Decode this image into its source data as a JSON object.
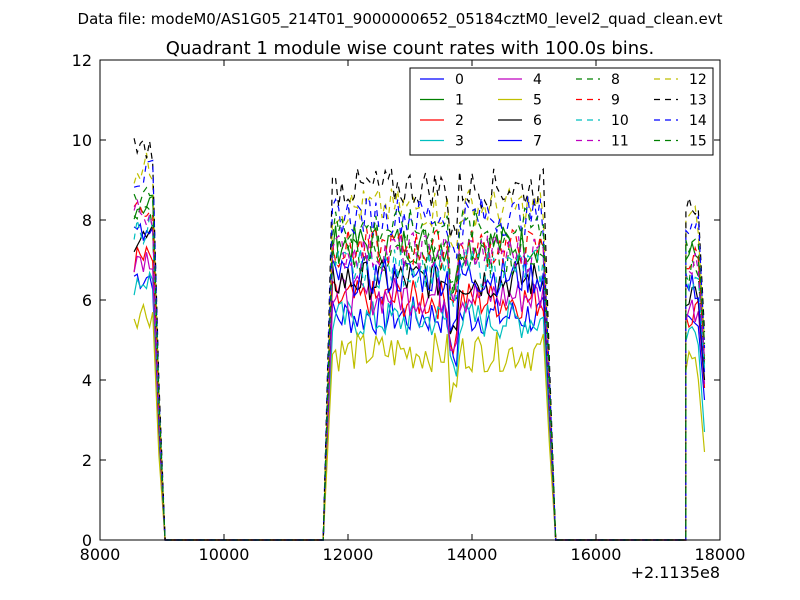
{
  "suptitle": "Data file: modeM0/AS1G05_214T01_9000000652_05184cztM0_level2_quad_clean.evt",
  "chart_data": {
    "type": "line",
    "title": "Quadrant 1 module wise count rates with 100.0s bins.",
    "xlabel": "",
    "ylabel": "",
    "xlim": [
      8000,
      18000
    ],
    "ylim": [
      0,
      12
    ],
    "x_offset_label": "+2.1135e8",
    "xticks": [
      8000,
      10000,
      12000,
      14000,
      16000,
      18000
    ],
    "yticks": [
      0,
      2,
      4,
      6,
      8,
      10,
      12
    ],
    "grid": false,
    "legend_position": "top-right",
    "legend_columns": 4,
    "segments": [
      {
        "x_start": 8550,
        "x_end": 8850
      },
      {
        "x_start": 11750,
        "x_end": 15150
      },
      {
        "x_start": 17450,
        "x_end": 17650
      }
    ],
    "x_zero_edges": [
      [
        9050,
        11600
      ],
      [
        15350,
        17450
      ]
    ],
    "x_end": 17750,
    "series": [
      {
        "name": "0",
        "color": "#0000ff",
        "dashed": false,
        "level": 5.6,
        "end": 3.5
      },
      {
        "name": "1",
        "color": "#008000",
        "dashed": false,
        "level": 7.4,
        "end": 4.5
      },
      {
        "name": "2",
        "color": "#ff0000",
        "dashed": false,
        "level": 6.0,
        "end": 3.8
      },
      {
        "name": "3",
        "color": "#00bfbf",
        "dashed": false,
        "level": 5.5,
        "end": 2.7
      },
      {
        "name": "4",
        "color": "#bf00bf",
        "dashed": false,
        "level": 6.1,
        "end": 3.9
      },
      {
        "name": "5",
        "color": "#bfbf00",
        "dashed": false,
        "level": 4.7,
        "end": 2.2
      },
      {
        "name": "6",
        "color": "#000000",
        "dashed": false,
        "level": 6.5,
        "end": 4.0
      },
      {
        "name": "7",
        "color": "#0000ff",
        "dashed": false,
        "level": 6.6,
        "end": 4.2
      },
      {
        "name": "8",
        "color": "#008000",
        "dashed": true,
        "level": 7.1,
        "end": 4.4
      },
      {
        "name": "9",
        "color": "#ff0000",
        "dashed": true,
        "level": 7.3,
        "end": 4.6
      },
      {
        "name": "10",
        "color": "#00bfbf",
        "dashed": true,
        "level": 6.8,
        "end": 4.3
      },
      {
        "name": "11",
        "color": "#bf00bf",
        "dashed": true,
        "level": 7.2,
        "end": 4.5
      },
      {
        "name": "12",
        "color": "#bfbf00",
        "dashed": true,
        "level": 8.3,
        "end": 5.0
      },
      {
        "name": "13",
        "color": "#000000",
        "dashed": true,
        "level": 8.8,
        "end": 5.2
      },
      {
        "name": "14",
        "color": "#0000ff",
        "dashed": true,
        "level": 8.1,
        "end": 4.8
      },
      {
        "name": "15",
        "color": "#008000",
        "dashed": true,
        "level": 7.8,
        "end": 4.9
      }
    ]
  }
}
